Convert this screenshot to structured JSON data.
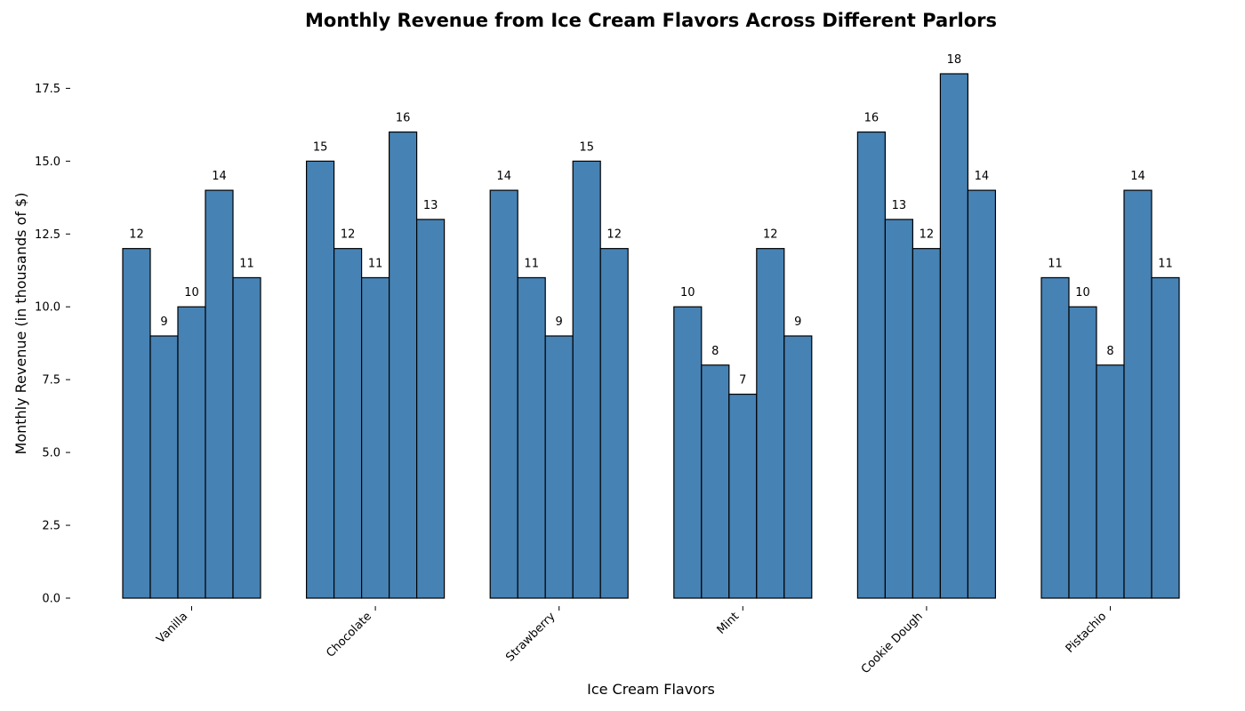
{
  "chart_data": {
    "type": "bar",
    "title": "Monthly Revenue from Ice Cream Flavors Across Different Parlors",
    "xlabel": "Ice Cream Flavors",
    "ylabel": "Monthly Revenue (in thousands of $)",
    "categories": [
      "Vanilla",
      "Chocolate",
      "Strawberry",
      "Mint",
      "Cookie Dough",
      "Pistachio"
    ],
    "series": [
      {
        "values": [
          12,
          15,
          14,
          10,
          16,
          11
        ]
      },
      {
        "values": [
          9,
          12,
          11,
          8,
          13,
          10
        ]
      },
      {
        "values": [
          10,
          11,
          9,
          7,
          12,
          8
        ]
      },
      {
        "values": [
          14,
          16,
          15,
          12,
          18,
          14
        ]
      },
      {
        "values": [
          11,
          13,
          12,
          9,
          14,
          11
        ]
      }
    ],
    "ylim": [
      0,
      19
    ],
    "yticks": [
      "0.0",
      "2.5",
      "5.0",
      "7.5",
      "10.0",
      "12.5",
      "15.0",
      "17.5"
    ],
    "bar_color": "#4682b4",
    "edge_color": "#000000",
    "grid": false,
    "legend": "none",
    "data_labels": true
  }
}
